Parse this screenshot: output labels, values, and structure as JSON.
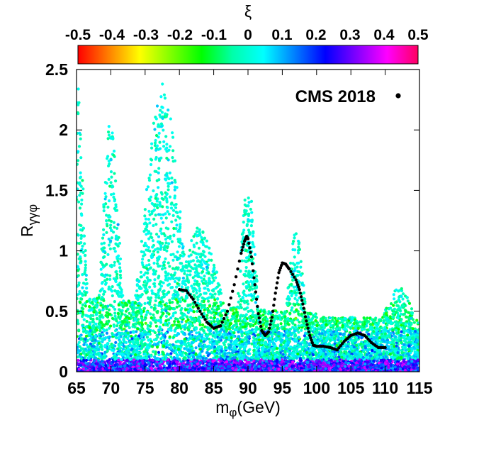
{
  "chart_data": {
    "type": "scatter",
    "title": "",
    "xlabel": "mφ(GeV)",
    "xlabel_main": "m",
    "xlabel_sub": "φ",
    "xlabel_unit": "(GeV)",
    "ylabel_main": "R",
    "ylabel_sub": "γγφ",
    "xlim": [
      65,
      115
    ],
    "ylim": [
      0,
      2.5
    ],
    "xticks": [
      "65",
      "70",
      "75",
      "80",
      "85",
      "90",
      "95",
      "100",
      "105",
      "110",
      "115"
    ],
    "yticks": [
      "0",
      "0.5",
      "1",
      "1.5",
      "2",
      "2.5"
    ],
    "colorbar": {
      "label": "ξ",
      "range": [
        -0.5,
        0.5
      ],
      "ticks": [
        "-0.5",
        "-0.4",
        "-0.3",
        "-0.2",
        "-0.1",
        "0",
        "0.1",
        "0.2",
        "0.3",
        "0.4",
        "0.5"
      ],
      "colors": [
        "#ff0000",
        "#ff8000",
        "#ffff00",
        "#80ff00",
        "#00ff00",
        "#00ffaa",
        "#00ffff",
        "#0080ff",
        "#0000ff",
        "#8000ff",
        "#ff00ff",
        "#ff0060"
      ]
    },
    "series": [
      {
        "name": "CMS 2018",
        "marker": "black-dot",
        "points": [
          [
            80,
            0.68
          ],
          [
            81,
            0.67
          ],
          [
            82,
            0.6
          ],
          [
            83,
            0.5
          ],
          [
            84,
            0.41
          ],
          [
            85,
            0.36
          ],
          [
            86,
            0.38
          ],
          [
            87,
            0.5
          ],
          [
            88,
            0.72
          ],
          [
            89,
            0.98
          ],
          [
            89.5,
            1.08
          ],
          [
            89.8,
            1.12
          ],
          [
            90,
            1.1
          ],
          [
            90.5,
            0.95
          ],
          [
            91,
            0.72
          ],
          [
            91.5,
            0.48
          ],
          [
            92,
            0.34
          ],
          [
            92.5,
            0.3
          ],
          [
            93,
            0.33
          ],
          [
            93.5,
            0.45
          ],
          [
            94,
            0.65
          ],
          [
            94.5,
            0.82
          ],
          [
            95,
            0.9
          ],
          [
            95.5,
            0.89
          ],
          [
            96,
            0.85
          ],
          [
            97,
            0.76
          ],
          [
            97.5,
            0.68
          ],
          [
            98,
            0.56
          ],
          [
            98.5,
            0.42
          ],
          [
            99,
            0.3
          ],
          [
            99.5,
            0.22
          ],
          [
            100,
            0.21
          ],
          [
            101,
            0.21
          ],
          [
            102,
            0.2
          ],
          [
            103,
            0.18
          ],
          [
            104,
            0.25
          ],
          [
            105,
            0.3
          ],
          [
            106,
            0.32
          ],
          [
            107,
            0.3
          ],
          [
            108,
            0.24
          ],
          [
            109,
            0.2
          ],
          [
            110,
            0.2
          ]
        ]
      }
    ],
    "scan_points_description_peaks": [
      {
        "mass": 65,
        "max_R": 2.42
      },
      {
        "mass": 70,
        "max_R": 2.1
      },
      {
        "mass": 77.5,
        "max_R": 2.38
      },
      {
        "mass": 90,
        "max_R": 1.6
      },
      {
        "mass": 97,
        "max_R": 1.18
      },
      {
        "mass": 112,
        "max_R": 0.7
      }
    ]
  }
}
